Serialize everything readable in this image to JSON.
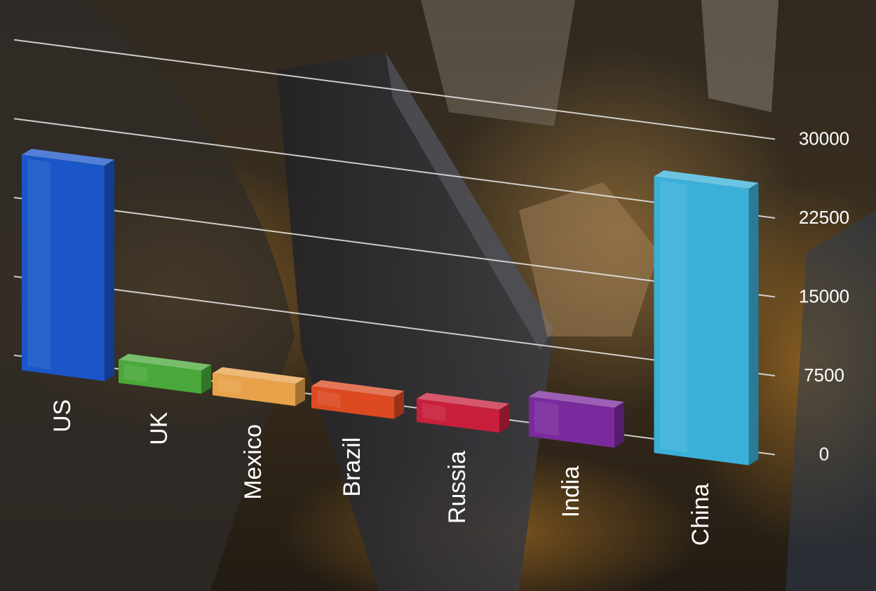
{
  "chart_data": {
    "type": "bar",
    "categories": [
      "US",
      "UK",
      "Mexico",
      "Brazil",
      "Russia",
      "India",
      "China"
    ],
    "values": [
      20500,
      2200,
      2100,
      2100,
      2200,
      3800,
      26300
    ],
    "title": "",
    "xlabel": "",
    "ylabel": "",
    "ylim": [
      0,
      30000
    ],
    "yticks": [
      "0",
      "7500",
      "15000",
      "22500",
      "30000"
    ],
    "grid": true,
    "legend": "none",
    "colors": [
      "#1a56c8",
      "#4aa83a",
      "#e8a24a",
      "#dc4a22",
      "#c8203c",
      "#7a2a9c",
      "#3ab0d8"
    ]
  }
}
